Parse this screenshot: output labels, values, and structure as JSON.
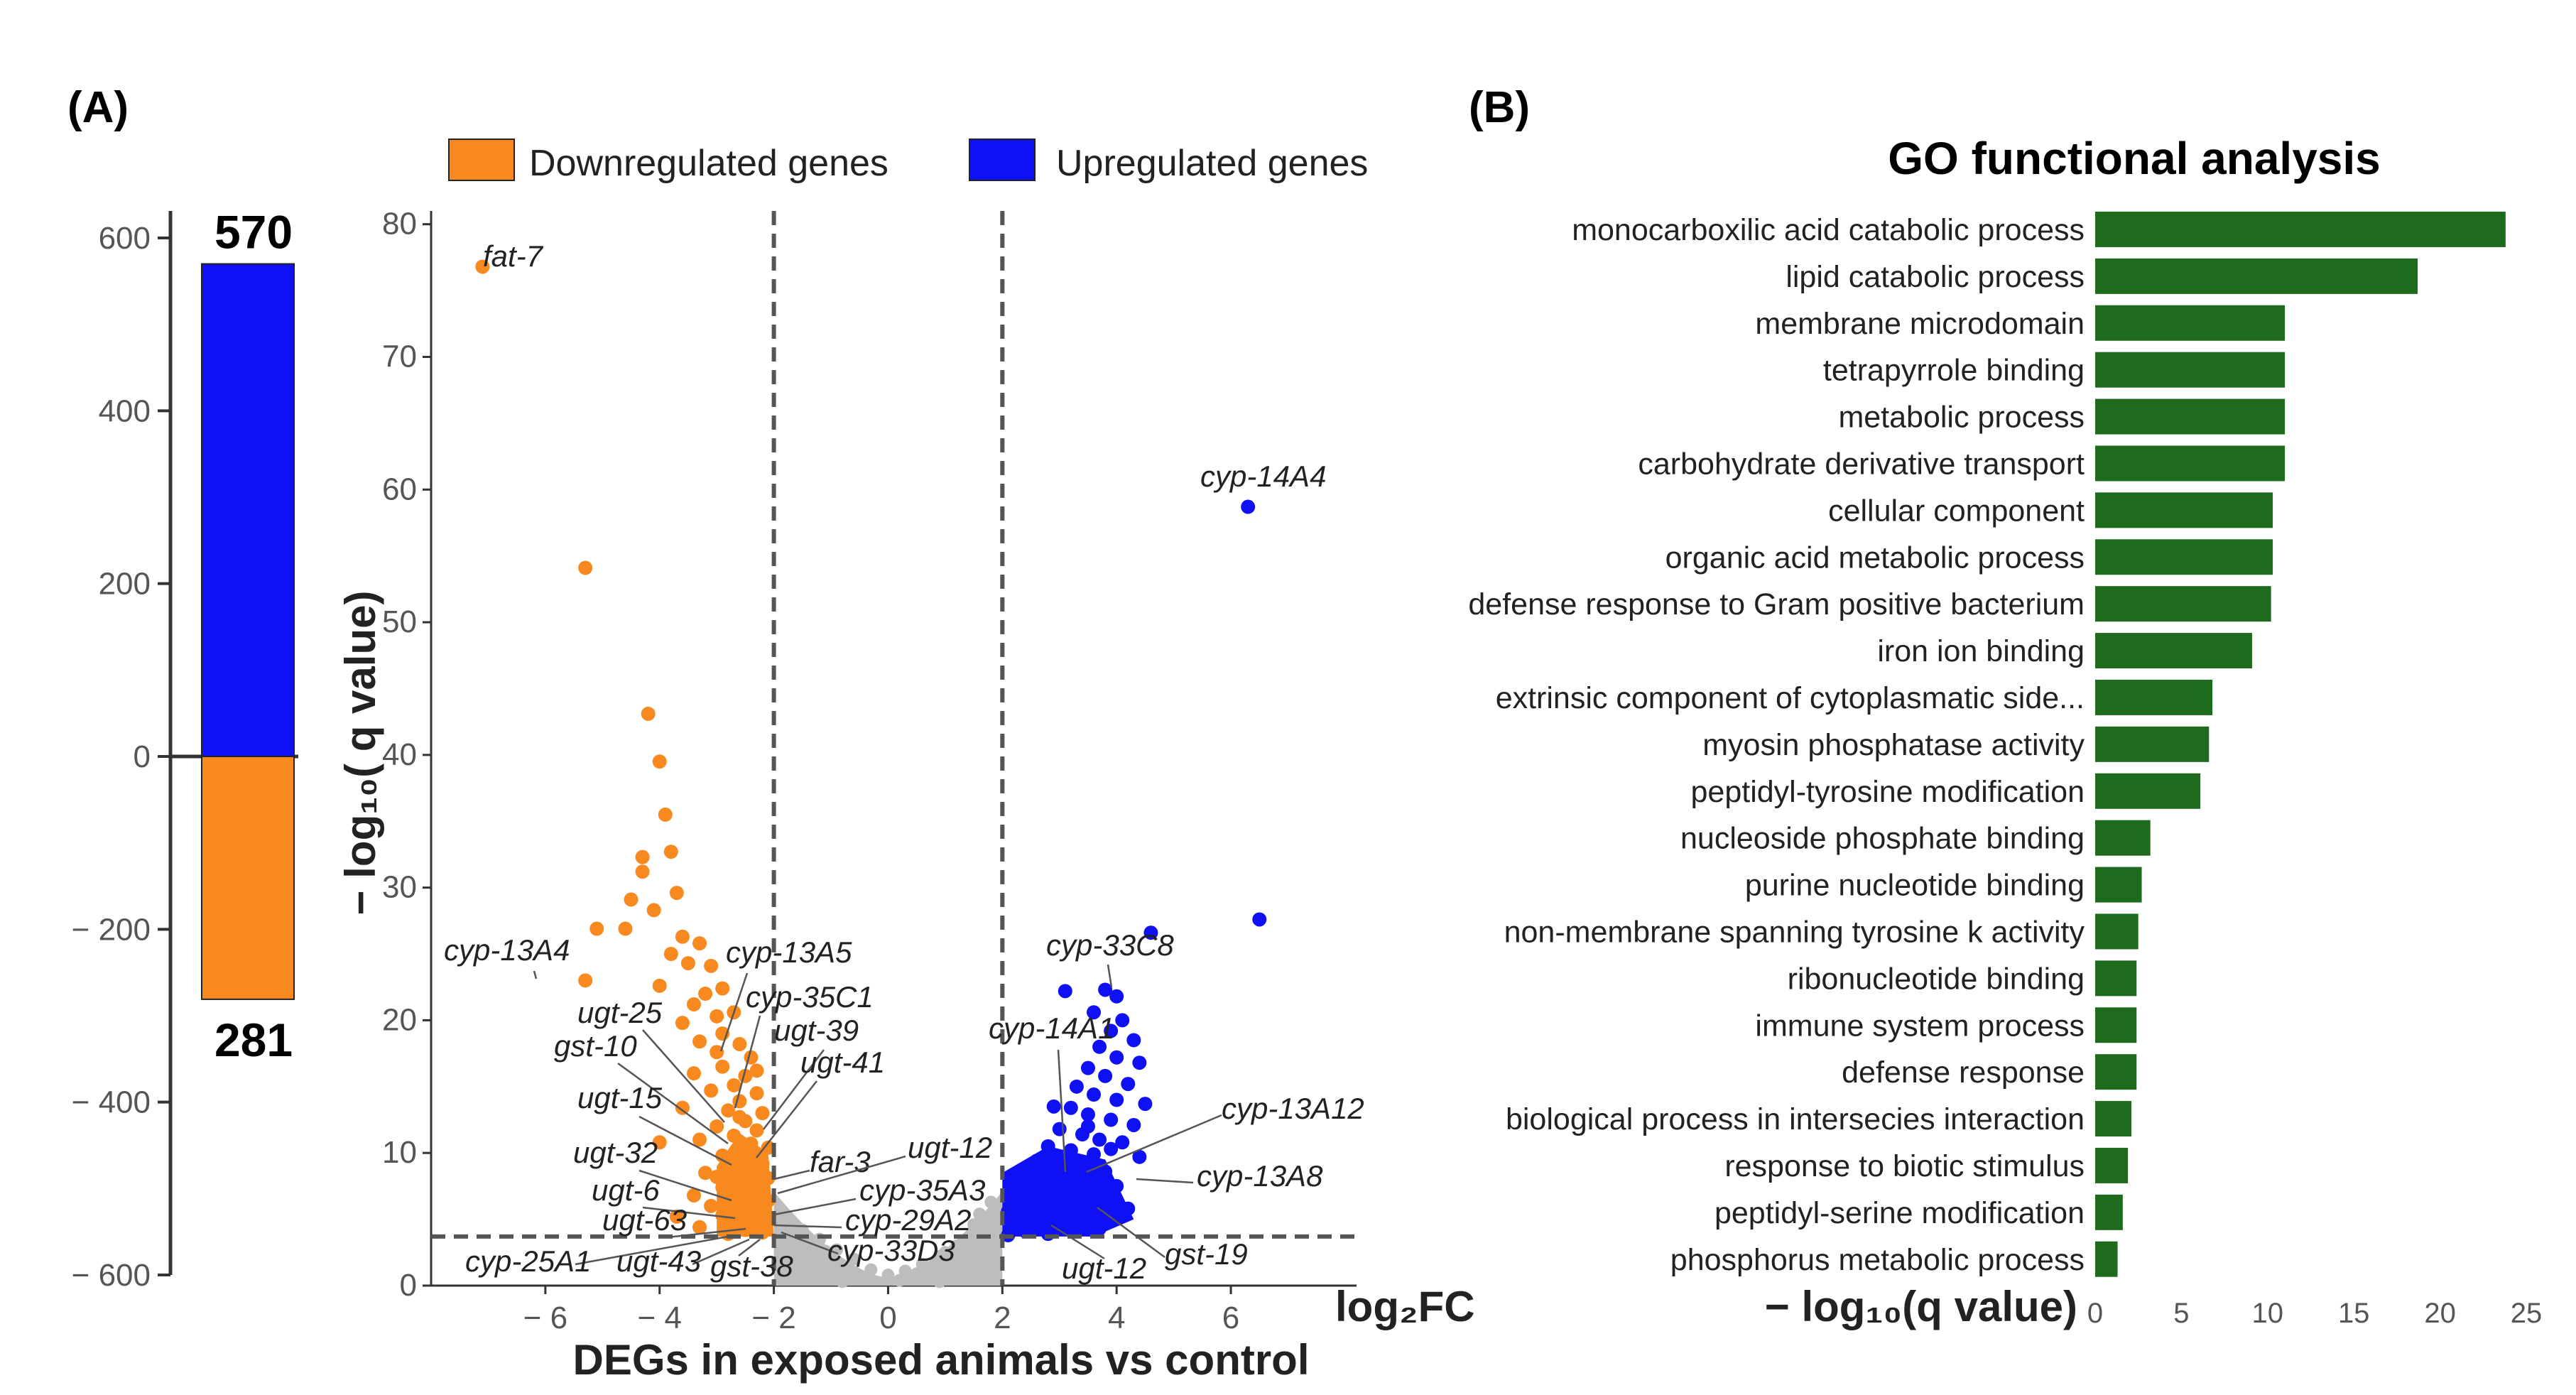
{
  "panel_a_label": "(A)",
  "panel_b_label": "(B)",
  "colors": {
    "down": "#F7891E",
    "up": "#1010F5",
    "nonsig": "#BDBDBD",
    "go_bar": "#1E6B1E",
    "threshold": "#555555"
  },
  "legend": {
    "down": "Downregulated genes",
    "up": "Upregulated genes"
  },
  "chart_data": [
    {
      "type": "bar",
      "title": "",
      "ylim": [
        -600,
        600
      ],
      "yticks": [
        600,
        400,
        200,
        0,
        -200,
        -400,
        -600
      ],
      "ytick_labels": [
        "600",
        "400",
        "200",
        "0",
        "− 200",
        "− 400",
        "− 600"
      ],
      "series": [
        {
          "name": "Upregulated genes",
          "value": 570,
          "label": "570"
        },
        {
          "name": "Downregulated genes",
          "value": -281,
          "label": "281"
        }
      ]
    },
    {
      "type": "scatter",
      "xlabel": "log₂FC",
      "ylabel": "− log₁₀( q value)",
      "subtitle": "DEGs in exposed animals vs control",
      "xlim": [
        -8,
        8.2
      ],
      "ylim": [
        0,
        81
      ],
      "xticks": [
        -6,
        -4,
        -2,
        0,
        2,
        4,
        6
      ],
      "xtick_labels": [
        "− 6",
        "− 4",
        "− 2",
        "0",
        "2",
        "4",
        "6"
      ],
      "yticks": [
        0,
        10,
        20,
        30,
        40,
        50,
        60,
        70,
        80
      ],
      "ytick_labels": [
        "0",
        "10",
        "20",
        "30",
        "40",
        "50",
        "60",
        "70",
        "80"
      ],
      "thresholds": {
        "log2fc": [
          -2,
          2
        ],
        "neglog10q": 3.7
      },
      "down_points": [
        [
          -7.1,
          76.8
        ],
        [
          -5.3,
          54.1
        ],
        [
          -4.2,
          43.1
        ],
        [
          -4.0,
          39.5
        ],
        [
          -3.9,
          35.5
        ],
        [
          -4.3,
          32.3
        ],
        [
          -4.3,
          31.2
        ],
        [
          -3.8,
          32.7
        ],
        [
          -4.5,
          29.1
        ],
        [
          -4.1,
          28.3
        ],
        [
          -3.7,
          29.6
        ],
        [
          -4.6,
          26.9
        ],
        [
          -5.1,
          26.9
        ],
        [
          -5.3,
          23.0
        ],
        [
          -3.6,
          26.3
        ],
        [
          -3.3,
          25.8
        ],
        [
          -3.8,
          25.0
        ],
        [
          -3.5,
          24.3
        ],
        [
          -3.1,
          24.1
        ],
        [
          -4.0,
          22.6
        ],
        [
          -3.2,
          22.0
        ],
        [
          -2.9,
          22.4
        ],
        [
          -3.4,
          21.2
        ],
        [
          -2.7,
          20.6
        ],
        [
          -3.0,
          20.3
        ],
        [
          -3.6,
          19.8
        ],
        [
          -2.9,
          19.0
        ],
        [
          -3.3,
          18.4
        ],
        [
          -2.6,
          18.2
        ],
        [
          -3.0,
          17.6
        ],
        [
          -2.4,
          17.2
        ],
        [
          -2.9,
          16.5
        ],
        [
          -3.4,
          16.0
        ],
        [
          -2.5,
          15.8
        ],
        [
          -2.7,
          15.1
        ],
        [
          -3.1,
          14.7
        ],
        [
          -2.3,
          14.5
        ],
        [
          -2.6,
          13.9
        ],
        [
          -3.6,
          13.4
        ],
        [
          -2.8,
          13.2
        ],
        [
          -2.2,
          13.0
        ],
        [
          -2.5,
          12.4
        ],
        [
          -3.0,
          12.0
        ],
        [
          -2.3,
          11.7
        ],
        [
          -2.7,
          11.3
        ],
        [
          -3.3,
          11.0
        ],
        [
          -4.0,
          10.8
        ],
        [
          -2.4,
          10.7
        ],
        [
          -2.1,
          10.4
        ],
        [
          -2.6,
          10.1
        ],
        [
          -2.9,
          9.8
        ],
        [
          -2.3,
          9.6
        ],
        [
          -2.2,
          9.2
        ],
        [
          -2.5,
          9.0
        ],
        [
          -2.8,
          8.8
        ],
        [
          -3.2,
          8.5
        ],
        [
          -2.4,
          8.3
        ],
        [
          -2.1,
          8.1
        ],
        [
          -2.6,
          7.8
        ],
        [
          -2.3,
          7.6
        ],
        [
          -2.9,
          7.4
        ],
        [
          -2.2,
          7.1
        ],
        [
          -2.5,
          6.9
        ],
        [
          -3.4,
          6.8
        ],
        [
          -2.7,
          6.6
        ],
        [
          -2.1,
          6.4
        ],
        [
          -2.4,
          6.2
        ],
        [
          -3.1,
          6.0
        ],
        [
          -2.3,
          5.8
        ],
        [
          -2.6,
          5.6
        ],
        [
          -2.2,
          5.4
        ],
        [
          -2.9,
          5.3
        ],
        [
          -3.7,
          5.2
        ],
        [
          -2.4,
          5.0
        ],
        [
          -2.1,
          4.8
        ],
        [
          -2.7,
          4.7
        ],
        [
          -2.3,
          4.5
        ],
        [
          -3.3,
          4.4
        ],
        [
          -2.5,
          4.2
        ],
        [
          -2.2,
          4.0
        ],
        [
          -2.8,
          3.9
        ],
        [
          -3.0,
          8.2
        ],
        [
          -2.6,
          12.7
        ],
        [
          -2.3,
          16.2
        ],
        [
          -2.4,
          9.8
        ]
      ],
      "up_points": [
        [
          6.3,
          58.7
        ],
        [
          6.5,
          27.6
        ],
        [
          4.6,
          26.6
        ],
        [
          3.1,
          22.2
        ],
        [
          3.8,
          22.3
        ],
        [
          4.0,
          21.8
        ],
        [
          3.6,
          20.6
        ],
        [
          4.1,
          20.0
        ],
        [
          3.9,
          19.2
        ],
        [
          4.3,
          18.5
        ],
        [
          3.7,
          18.0
        ],
        [
          4.0,
          17.2
        ],
        [
          4.4,
          16.8
        ],
        [
          3.5,
          16.4
        ],
        [
          3.8,
          15.8
        ],
        [
          4.2,
          15.2
        ],
        [
          3.3,
          15.0
        ],
        [
          3.6,
          14.4
        ],
        [
          4.0,
          14.0
        ],
        [
          4.5,
          13.7
        ],
        [
          3.2,
          13.4
        ],
        [
          3.5,
          12.9
        ],
        [
          3.9,
          12.5
        ],
        [
          4.3,
          12.1
        ],
        [
          3.0,
          11.8
        ],
        [
          3.4,
          11.4
        ],
        [
          3.7,
          11.0
        ],
        [
          4.1,
          10.8
        ],
        [
          2.8,
          10.5
        ],
        [
          3.2,
          10.2
        ],
        [
          3.6,
          9.9
        ],
        [
          4.4,
          9.7
        ],
        [
          2.6,
          9.4
        ],
        [
          3.0,
          9.1
        ],
        [
          3.4,
          8.9
        ],
        [
          3.8,
          8.6
        ],
        [
          2.4,
          8.4
        ],
        [
          2.8,
          8.1
        ],
        [
          3.2,
          7.9
        ],
        [
          3.6,
          7.7
        ],
        [
          4.0,
          7.5
        ],
        [
          2.3,
          7.3
        ],
        [
          2.7,
          7.1
        ],
        [
          3.1,
          6.9
        ],
        [
          3.5,
          6.7
        ],
        [
          2.2,
          6.5
        ],
        [
          2.6,
          6.3
        ],
        [
          3.0,
          6.1
        ],
        [
          3.4,
          5.9
        ],
        [
          4.2,
          5.8
        ],
        [
          2.1,
          5.6
        ],
        [
          2.5,
          5.4
        ],
        [
          2.9,
          5.2
        ],
        [
          3.3,
          5.0
        ],
        [
          2.2,
          4.8
        ],
        [
          2.6,
          4.6
        ],
        [
          3.0,
          4.4
        ],
        [
          3.7,
          4.3
        ],
        [
          2.4,
          4.1
        ],
        [
          2.8,
          3.9
        ],
        [
          2.1,
          3.8
        ],
        [
          3.5,
          12.0
        ],
        [
          3.9,
          10.3
        ],
        [
          2.9,
          13.5
        ]
      ],
      "nonsig_points": [
        [
          -1.8,
          5.2
        ],
        [
          -1.5,
          4.2
        ],
        [
          -1.2,
          3.5
        ],
        [
          -0.9,
          2.7
        ],
        [
          -0.6,
          2.0
        ],
        [
          -0.3,
          1.2
        ],
        [
          0.0,
          0.8
        ],
        [
          0.3,
          1.1
        ],
        [
          0.6,
          1.6
        ],
        [
          0.9,
          2.2
        ],
        [
          1.2,
          3.0
        ],
        [
          1.5,
          4.6
        ],
        [
          1.8,
          6.3
        ],
        [
          -1.6,
          2.9
        ],
        [
          -1.3,
          2.1
        ],
        [
          -1.0,
          1.6
        ],
        [
          -0.7,
          1.0
        ],
        [
          -0.4,
          0.6
        ],
        [
          0.2,
          0.4
        ],
        [
          0.5,
          0.9
        ],
        [
          0.8,
          1.4
        ],
        [
          1.1,
          2.0
        ],
        [
          1.4,
          2.7
        ],
        [
          1.7,
          3.4
        ],
        [
          -1.9,
          1.5
        ],
        [
          1.9,
          1.8
        ],
        [
          -1.4,
          0.8
        ],
        [
          1.3,
          0.7
        ],
        [
          -0.8,
          0.3
        ],
        [
          0.9,
          0.3
        ],
        [
          -1.7,
          3.6
        ],
        [
          1.6,
          5.4
        ],
        [
          -1.1,
          2.6
        ],
        [
          1.0,
          2.5
        ]
      ],
      "annotations": [
        {
          "text": "fat-7"
        },
        {
          "text": "cyp-14A4"
        },
        {
          "text": "cyp-13A4"
        },
        {
          "text": "cyp-13A5"
        },
        {
          "text": "cyp-35C1"
        },
        {
          "text": "ugt-25"
        },
        {
          "text": "ugt-39"
        },
        {
          "text": "gst-10"
        },
        {
          "text": "ugt-41"
        },
        {
          "text": "ugt-15"
        },
        {
          "text": "far-3"
        },
        {
          "text": "ugt-12"
        },
        {
          "text": "ugt-32"
        },
        {
          "text": "cyp-35A3"
        },
        {
          "text": "ugt-6"
        },
        {
          "text": "cyp-29A2"
        },
        {
          "text": "ugt-63"
        },
        {
          "text": "cyp-33D3"
        },
        {
          "text": "cyp-25A1"
        },
        {
          "text": "ugt-43"
        },
        {
          "text": "gst-38"
        },
        {
          "text": "cyp-33C8"
        },
        {
          "text": "cyp-14A1"
        },
        {
          "text": "cyp-13A12"
        },
        {
          "text": "cyp-13A8"
        },
        {
          "text": "gst-19"
        },
        {
          "text": "ugt-12"
        }
      ]
    },
    {
      "type": "bar",
      "orientation": "horizontal",
      "title": "GO functional analysis",
      "xlabel": "− log₁₀(q value)",
      "xlim": [
        0,
        25
      ],
      "xticks": [
        0,
        5,
        10,
        15,
        20,
        25
      ],
      "categories": [
        "monocarboxilic acid catabolic process",
        "lipid catabolic process",
        "membrane microdomain",
        "tetrapyrrole binding",
        "metabolic process",
        "carbohydrate derivative transport",
        "cellular component",
        "organic acid metabolic process",
        "defense response to Gram positive bacterium",
        "iron ion binding",
        "extrinsic component of cytoplasmatic side...",
        "myosin phosphatase activity",
        "peptidyl-tyrosine modification",
        "nucleoside phosphate binding",
        "purine nucleotide binding",
        "non-membrane spanning tyrosine k activity",
        "ribonucleotide binding",
        "immune system process",
        "defense response",
        "biological process in intersecies interaction",
        "response to biotic stimulus",
        "peptidyl-serine modification",
        "phosphorus metabolic process"
      ],
      "values": [
        23.8,
        18.7,
        11.0,
        11.0,
        11.0,
        11.0,
        10.3,
        10.3,
        10.2,
        9.1,
        6.8,
        6.6,
        6.1,
        3.2,
        2.7,
        2.5,
        2.4,
        2.4,
        2.4,
        2.1,
        1.9,
        1.6,
        1.3
      ]
    }
  ]
}
